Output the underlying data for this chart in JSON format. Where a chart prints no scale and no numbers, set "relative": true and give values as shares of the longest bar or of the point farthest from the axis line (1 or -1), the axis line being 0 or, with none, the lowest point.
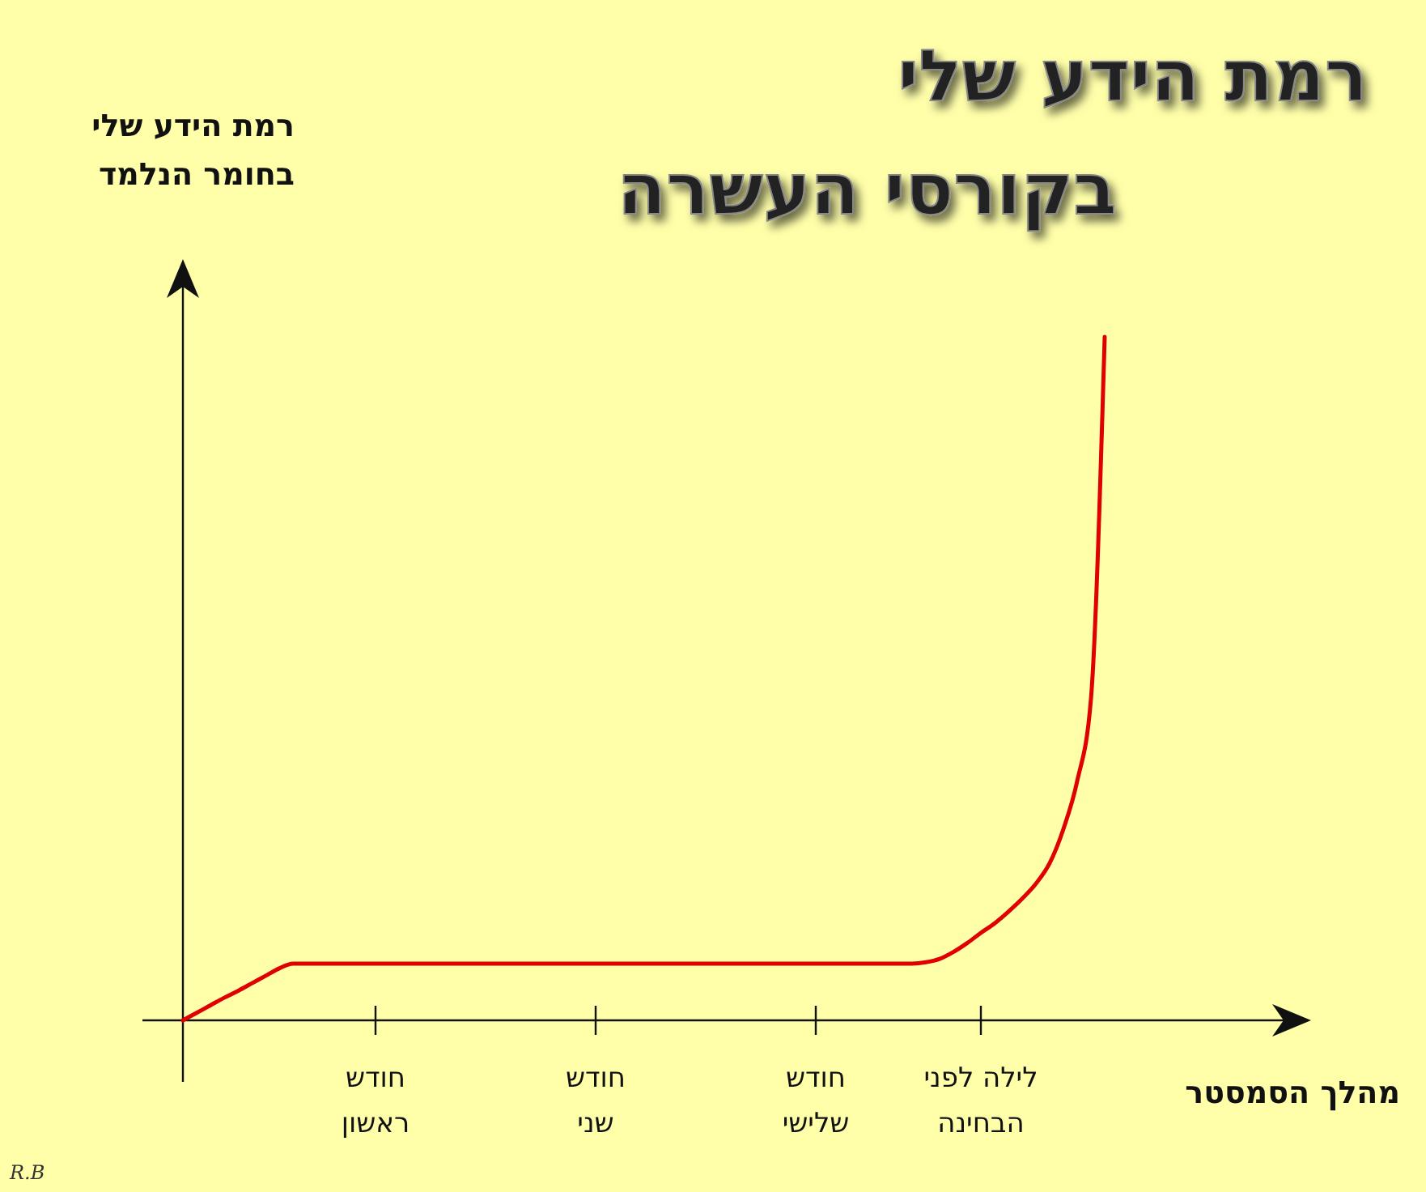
{
  "chart_data": {
    "type": "line",
    "relative": true,
    "title": "רמת הידע שלי\nבקורסי העשרה",
    "ylabel": "רמת הידע שלי\nבחומר הנלמד",
    "xlabel": "מהלך הסמסטר",
    "categories": [
      null,
      null,
      null,
      null,
      null,
      null,
      null,
      null,
      null,
      null,
      null,
      null,
      null,
      null,
      "חודש\nראשון",
      null,
      null,
      null,
      null,
      null,
      null,
      null,
      null,
      null,
      null,
      null,
      null,
      null,
      null,
      null,
      "חודש\nשני",
      null,
      null,
      null,
      null,
      null,
      null,
      null,
      null,
      null,
      null,
      null,
      null,
      null,
      null,
      null,
      "חודש\nשלישי",
      null,
      null,
      null,
      null,
      null,
      null,
      null,
      null,
      null,
      null,
      null,
      "לילה לפני\nהבחינה",
      null,
      null,
      null,
      null,
      null,
      null,
      null,
      null,
      null,
      null,
      null,
      null,
      null,
      null,
      null,
      null,
      null,
      null,
      null,
      null,
      null,
      null
    ],
    "series": [
      {
        "color": "#e00000",
        "values": [
          0,
          0.011,
          0.022,
          0.033,
          0.043,
          0.054,
          0.065,
          0.076,
          0.083,
          0.083,
          0.083,
          0.083,
          0.083,
          0.083,
          0.083,
          0.083,
          0.083,
          0.083,
          0.083,
          0.083,
          0.083,
          0.083,
          0.083,
          0.083,
          0.083,
          0.083,
          0.083,
          0.083,
          0.083,
          0.083,
          0.083,
          0.083,
          0.083,
          0.083,
          0.083,
          0.083,
          0.083,
          0.083,
          0.083,
          0.083,
          0.083,
          0.083,
          0.083,
          0.083,
          0.083,
          0.083,
          0.083,
          0.083,
          0.083,
          0.083,
          0.083,
          0.083,
          0.083,
          0.083,
          0.085,
          0.09,
          0.1,
          0.113,
          0.128,
          0.142,
          0.159,
          0.178,
          0.2,
          0.23,
          0.28,
          0.35,
          0.47,
          1,
          null,
          null,
          null,
          null,
          null,
          null,
          null,
          null,
          null,
          null,
          null,
          null,
          null
        ]
      }
    ],
    "marker": "none",
    "line_style": "solid",
    "annotations": [
      "R.B"
    ]
  }
}
